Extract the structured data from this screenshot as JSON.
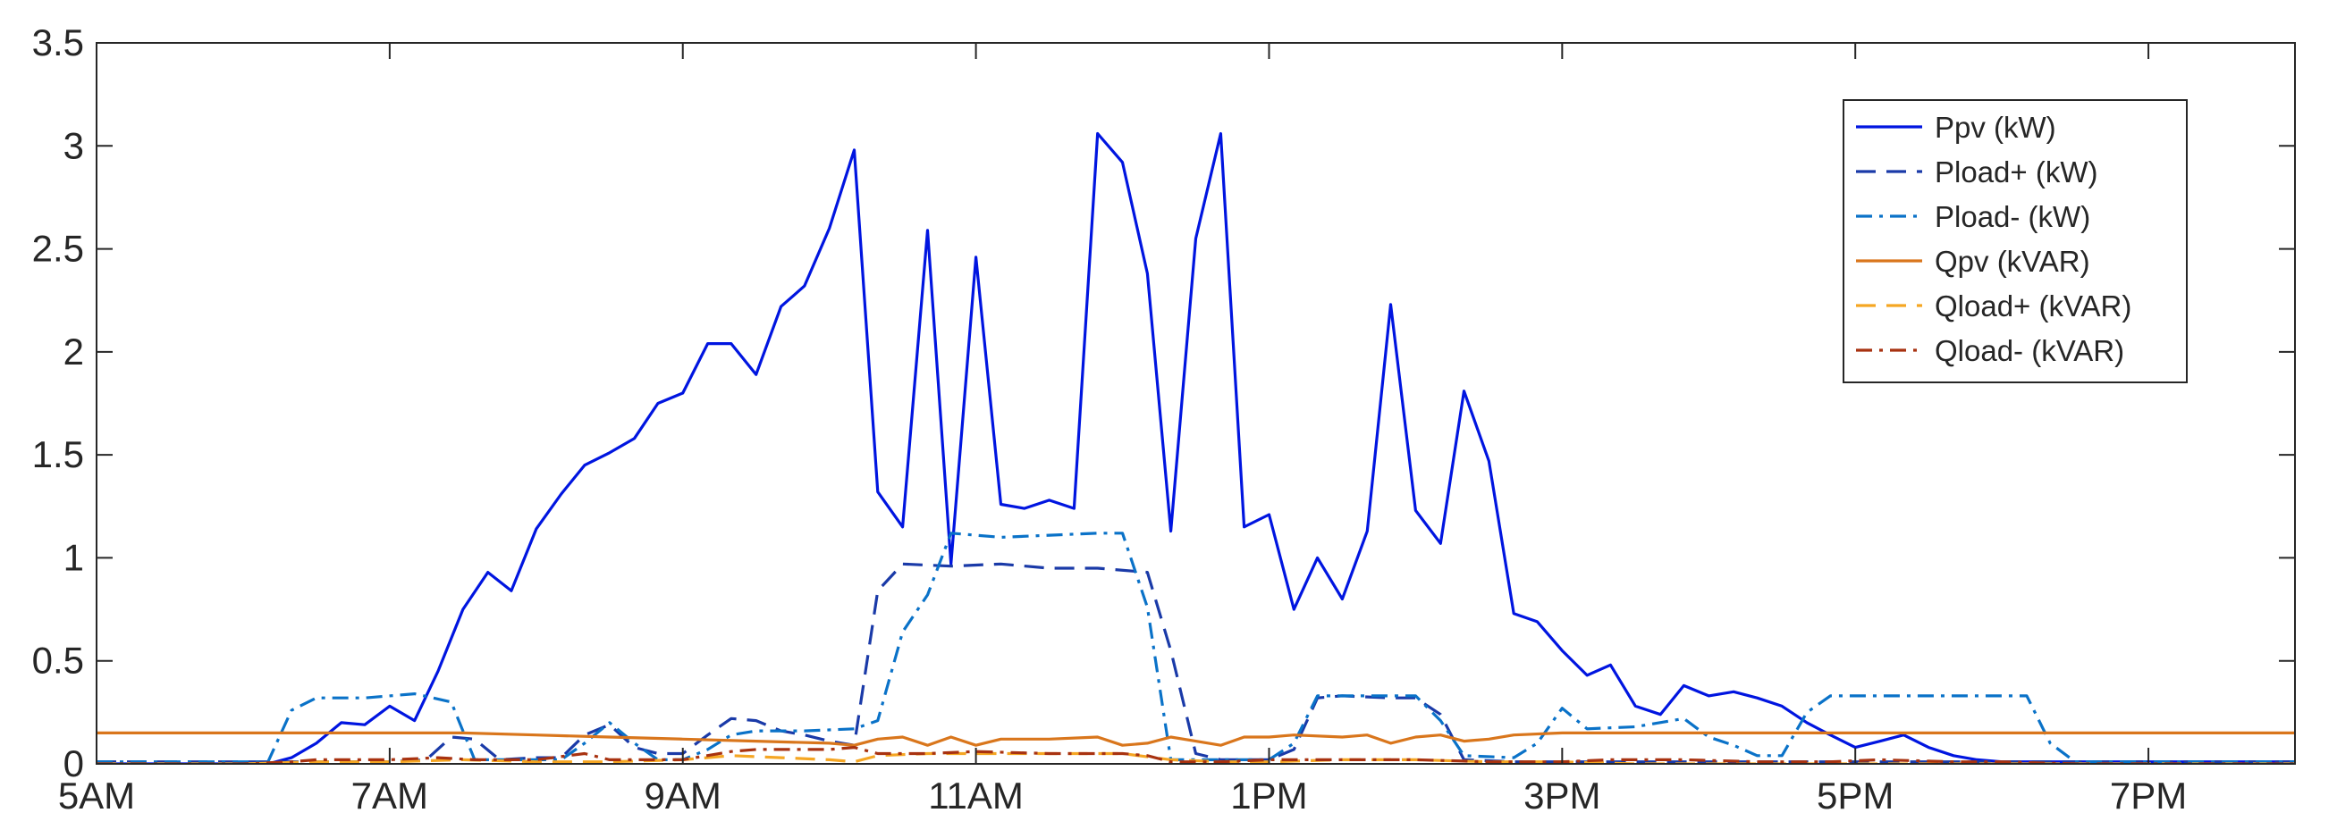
{
  "chart_data": {
    "type": "line",
    "title": "",
    "xlabel": "",
    "ylabel": "",
    "xlim": [
      5,
      20
    ],
    "ylim": [
      0,
      3.5
    ],
    "x_ticks": [
      {
        "value": 5,
        "label": "5AM"
      },
      {
        "value": 7,
        "label": "7AM"
      },
      {
        "value": 9,
        "label": "9AM"
      },
      {
        "value": 11,
        "label": "11AM"
      },
      {
        "value": 13,
        "label": "1PM"
      },
      {
        "value": 15,
        "label": "3PM"
      },
      {
        "value": 17,
        "label": "5PM"
      },
      {
        "value": 19,
        "label": "7PM"
      }
    ],
    "y_ticks": [
      {
        "value": 0,
        "label": "0"
      },
      {
        "value": 0.5,
        "label": "0.5"
      },
      {
        "value": 1,
        "label": "1"
      },
      {
        "value": 1.5,
        "label": "1.5"
      },
      {
        "value": 2,
        "label": "2"
      },
      {
        "value": 2.5,
        "label": "2.5"
      },
      {
        "value": 3,
        "label": "3"
      },
      {
        "value": 3.5,
        "label": "3.5"
      }
    ],
    "grid": false,
    "legend_position": "top-right",
    "series": [
      {
        "name": "Ppv (kW)",
        "color": "#0015e0",
        "dash": "solid",
        "points": [
          [
            5,
            0
          ],
          [
            6,
            0
          ],
          [
            6.17,
            0
          ],
          [
            6.33,
            0.03
          ],
          [
            6.5,
            0.1
          ],
          [
            6.67,
            0.2
          ],
          [
            6.83,
            0.19
          ],
          [
            7,
            0.28
          ],
          [
            7.17,
            0.21
          ],
          [
            7.33,
            0.45
          ],
          [
            7.5,
            0.75
          ],
          [
            7.67,
            0.93
          ],
          [
            7.83,
            0.84
          ],
          [
            8,
            1.14
          ],
          [
            8.17,
            1.31
          ],
          [
            8.33,
            1.45
          ],
          [
            8.5,
            1.51
          ],
          [
            8.67,
            1.58
          ],
          [
            8.83,
            1.75
          ],
          [
            9,
            1.8
          ],
          [
            9.17,
            2.04
          ],
          [
            9.33,
            2.04
          ],
          [
            9.5,
            1.89
          ],
          [
            9.67,
            2.22
          ],
          [
            9.83,
            2.32
          ],
          [
            10,
            2.6
          ],
          [
            10.17,
            2.98
          ],
          [
            10.33,
            1.32
          ],
          [
            10.5,
            1.15
          ],
          [
            10.67,
            2.59
          ],
          [
            10.83,
            0.97
          ],
          [
            11,
            2.46
          ],
          [
            11.17,
            1.26
          ],
          [
            11.33,
            1.24
          ],
          [
            11.5,
            1.28
          ],
          [
            11.67,
            1.24
          ],
          [
            11.83,
            3.06
          ],
          [
            12,
            2.92
          ],
          [
            12.17,
            2.38
          ],
          [
            12.33,
            1.13
          ],
          [
            12.5,
            2.55
          ],
          [
            12.67,
            3.06
          ],
          [
            12.83,
            1.15
          ],
          [
            13,
            1.21
          ],
          [
            13.17,
            0.75
          ],
          [
            13.33,
            1.0
          ],
          [
            13.5,
            0.8
          ],
          [
            13.67,
            1.13
          ],
          [
            13.83,
            2.23
          ],
          [
            14,
            1.23
          ],
          [
            14.17,
            1.07
          ],
          [
            14.33,
            1.81
          ],
          [
            14.5,
            1.47
          ],
          [
            14.67,
            0.73
          ],
          [
            14.83,
            0.69
          ],
          [
            15,
            0.55
          ],
          [
            15.17,
            0.43
          ],
          [
            15.33,
            0.48
          ],
          [
            15.5,
            0.28
          ],
          [
            15.67,
            0.24
          ],
          [
            15.83,
            0.38
          ],
          [
            16,
            0.33
          ],
          [
            16.17,
            0.35
          ],
          [
            16.33,
            0.32
          ],
          [
            16.5,
            0.28
          ],
          [
            16.67,
            0.2
          ],
          [
            16.83,
            0.14
          ],
          [
            17,
            0.08
          ],
          [
            17.17,
            0.11
          ],
          [
            17.33,
            0.14
          ],
          [
            17.5,
            0.08
          ],
          [
            17.67,
            0.04
          ],
          [
            17.83,
            0.02
          ],
          [
            18,
            0.01
          ],
          [
            18.5,
            0.01
          ],
          [
            19,
            0.01
          ],
          [
            20,
            0.01
          ]
        ]
      },
      {
        "name": "Pload+ (kW)",
        "color": "#1a3aa8",
        "dash": "dashed",
        "points": [
          [
            5,
            0.01
          ],
          [
            6,
            0.01
          ],
          [
            6.5,
            0.01
          ],
          [
            7,
            0.01
          ],
          [
            7.25,
            0.02
          ],
          [
            7.42,
            0.13
          ],
          [
            7.58,
            0.12
          ],
          [
            7.75,
            0.02
          ],
          [
            8,
            0.03
          ],
          [
            8.17,
            0.03
          ],
          [
            8.33,
            0.14
          ],
          [
            8.5,
            0.19
          ],
          [
            8.67,
            0.08
          ],
          [
            8.83,
            0.05
          ],
          [
            9,
            0.05
          ],
          [
            9.17,
            0.14
          ],
          [
            9.33,
            0.22
          ],
          [
            9.5,
            0.21
          ],
          [
            9.67,
            0.16
          ],
          [
            9.83,
            0.14
          ],
          [
            10,
            0.11
          ],
          [
            10.17,
            0.09
          ],
          [
            10.33,
            0.84
          ],
          [
            10.5,
            0.97
          ],
          [
            10.83,
            0.96
          ],
          [
            11.17,
            0.97
          ],
          [
            11.5,
            0.95
          ],
          [
            11.83,
            0.95
          ],
          [
            12.17,
            0.93
          ],
          [
            12.33,
            0.55
          ],
          [
            12.5,
            0.05
          ],
          [
            12.67,
            0.02
          ],
          [
            13,
            0.02
          ],
          [
            13.17,
            0.07
          ],
          [
            13.33,
            0.32
          ],
          [
            13.5,
            0.33
          ],
          [
            13.83,
            0.32
          ],
          [
            14,
            0.32
          ],
          [
            14.17,
            0.24
          ],
          [
            14.33,
            0.02
          ],
          [
            14.67,
            0.01
          ],
          [
            15,
            0.01
          ],
          [
            15.5,
            0.01
          ],
          [
            16,
            0.01
          ],
          [
            16.5,
            0.01
          ],
          [
            17,
            0.01
          ],
          [
            17.5,
            0.01
          ],
          [
            18,
            0.01
          ],
          [
            19,
            0.01
          ],
          [
            20,
            0.01
          ]
        ]
      },
      {
        "name": "Pload- (kW)",
        "color": "#0a72c8",
        "dash": "dashdot",
        "points": [
          [
            5,
            0.01
          ],
          [
            6,
            0.01
          ],
          [
            6.17,
            0.01
          ],
          [
            6.33,
            0.26
          ],
          [
            6.5,
            0.32
          ],
          [
            6.83,
            0.32
          ],
          [
            7.17,
            0.34
          ],
          [
            7.42,
            0.3
          ],
          [
            7.58,
            0.02
          ],
          [
            7.83,
            0.02
          ],
          [
            8.17,
            0.02
          ],
          [
            8.33,
            0.1
          ],
          [
            8.5,
            0.2
          ],
          [
            8.67,
            0.1
          ],
          [
            8.83,
            0.02
          ],
          [
            9,
            0.02
          ],
          [
            9.17,
            0.07
          ],
          [
            9.33,
            0.14
          ],
          [
            9.5,
            0.16
          ],
          [
            9.83,
            0.16
          ],
          [
            10.17,
            0.17
          ],
          [
            10.33,
            0.21
          ],
          [
            10.5,
            0.64
          ],
          [
            10.67,
            0.82
          ],
          [
            10.83,
            1.12
          ],
          [
            11,
            1.11
          ],
          [
            11.17,
            1.1
          ],
          [
            11.5,
            1.11
          ],
          [
            11.83,
            1.12
          ],
          [
            12,
            1.12
          ],
          [
            12.17,
            0.76
          ],
          [
            12.33,
            0.02
          ],
          [
            12.67,
            0.02
          ],
          [
            13,
            0.02
          ],
          [
            13.17,
            0.1
          ],
          [
            13.33,
            0.33
          ],
          [
            13.67,
            0.33
          ],
          [
            14,
            0.33
          ],
          [
            14.17,
            0.21
          ],
          [
            14.33,
            0.04
          ],
          [
            14.67,
            0.03
          ],
          [
            14.83,
            0.1
          ],
          [
            15,
            0.27
          ],
          [
            15.17,
            0.17
          ],
          [
            15.5,
            0.18
          ],
          [
            15.83,
            0.22
          ],
          [
            16,
            0.13
          ],
          [
            16.17,
            0.09
          ],
          [
            16.33,
            0.04
          ],
          [
            16.5,
            0.04
          ],
          [
            16.67,
            0.25
          ],
          [
            16.83,
            0.33
          ],
          [
            17,
            0.33
          ],
          [
            17.5,
            0.33
          ],
          [
            17.83,
            0.33
          ],
          [
            18.17,
            0.33
          ],
          [
            18.33,
            0.1
          ],
          [
            18.5,
            0.01
          ],
          [
            19,
            0.01
          ],
          [
            20,
            0.01
          ]
        ]
      },
      {
        "name": "Qpv (kVAR)",
        "color": "#d9761c",
        "dash": "solid",
        "points": [
          [
            5,
            0.15
          ],
          [
            6,
            0.15
          ],
          [
            6.5,
            0.15
          ],
          [
            7,
            0.15
          ],
          [
            7.5,
            0.15
          ],
          [
            8,
            0.14
          ],
          [
            8.5,
            0.13
          ],
          [
            9,
            0.12
          ],
          [
            9.5,
            0.11
          ],
          [
            10,
            0.1
          ],
          [
            10.17,
            0.09
          ],
          [
            10.33,
            0.12
          ],
          [
            10.5,
            0.13
          ],
          [
            10.67,
            0.09
          ],
          [
            10.83,
            0.13
          ],
          [
            11,
            0.09
          ],
          [
            11.17,
            0.12
          ],
          [
            11.5,
            0.12
          ],
          [
            11.83,
            0.13
          ],
          [
            12,
            0.09
          ],
          [
            12.17,
            0.1
          ],
          [
            12.33,
            0.13
          ],
          [
            12.5,
            0.11
          ],
          [
            12.67,
            0.09
          ],
          [
            12.83,
            0.13
          ],
          [
            13,
            0.13
          ],
          [
            13.17,
            0.14
          ],
          [
            13.5,
            0.13
          ],
          [
            13.67,
            0.14
          ],
          [
            13.83,
            0.1
          ],
          [
            14,
            0.13
          ],
          [
            14.17,
            0.14
          ],
          [
            14.33,
            0.11
          ],
          [
            14.5,
            0.12
          ],
          [
            14.67,
            0.14
          ],
          [
            15,
            0.15
          ],
          [
            15.5,
            0.15
          ],
          [
            16,
            0.15
          ],
          [
            16.5,
            0.15
          ],
          [
            17,
            0.15
          ],
          [
            17.5,
            0.15
          ],
          [
            18,
            0.15
          ],
          [
            18.5,
            0.15
          ],
          [
            19,
            0.15
          ],
          [
            19.5,
            0.15
          ],
          [
            20,
            0.15
          ]
        ]
      },
      {
        "name": "Qload+ (kVAR)",
        "color": "#f5a623",
        "dash": "dashed",
        "points": [
          [
            5,
            0
          ],
          [
            6,
            0
          ],
          [
            6.5,
            0.01
          ],
          [
            7,
            0.01
          ],
          [
            7.5,
            0.02
          ],
          [
            8,
            0.01
          ],
          [
            8.5,
            0.01
          ],
          [
            9,
            0.02
          ],
          [
            9.33,
            0.04
          ],
          [
            9.67,
            0.03
          ],
          [
            10,
            0.02
          ],
          [
            10.17,
            0.01
          ],
          [
            10.33,
            0.04
          ],
          [
            10.67,
            0.05
          ],
          [
            11,
            0.05
          ],
          [
            11.5,
            0.05
          ],
          [
            12,
            0.05
          ],
          [
            12.33,
            0.02
          ],
          [
            12.67,
            0.01
          ],
          [
            13,
            0.01
          ],
          [
            13.5,
            0.02
          ],
          [
            14,
            0.02
          ],
          [
            14.5,
            0.01
          ],
          [
            15,
            0.01
          ],
          [
            15.5,
            0
          ],
          [
            16,
            0
          ],
          [
            16.5,
            0
          ],
          [
            17,
            0
          ],
          [
            18,
            0
          ],
          [
            19,
            0
          ],
          [
            20,
            0
          ]
        ]
      },
      {
        "name": "Qload- (kVAR)",
        "color": "#a83210",
        "dash": "dashdot",
        "points": [
          [
            5,
            0
          ],
          [
            6,
            0
          ],
          [
            6.33,
            0.01
          ],
          [
            6.5,
            0.02
          ],
          [
            7,
            0.02
          ],
          [
            7.33,
            0.03
          ],
          [
            7.58,
            0.02
          ],
          [
            8,
            0.02
          ],
          [
            8.33,
            0.05
          ],
          [
            8.5,
            0.02
          ],
          [
            9,
            0.02
          ],
          [
            9.33,
            0.06
          ],
          [
            9.5,
            0.07
          ],
          [
            10,
            0.07
          ],
          [
            10.17,
            0.08
          ],
          [
            10.33,
            0.05
          ],
          [
            10.67,
            0.05
          ],
          [
            11,
            0.06
          ],
          [
            11.5,
            0.05
          ],
          [
            12,
            0.05
          ],
          [
            12.17,
            0.04
          ],
          [
            12.33,
            0.01
          ],
          [
            12.67,
            0.01
          ],
          [
            13,
            0.02
          ],
          [
            13.5,
            0.02
          ],
          [
            14,
            0.02
          ],
          [
            14.5,
            0.01
          ],
          [
            15,
            0.01
          ],
          [
            15.33,
            0.02
          ],
          [
            15.83,
            0.02
          ],
          [
            16.33,
            0.01
          ],
          [
            16.83,
            0.01
          ],
          [
            17.17,
            0.02
          ],
          [
            17.67,
            0.01
          ],
          [
            18,
            0.01
          ],
          [
            18.5,
            0
          ],
          [
            19,
            0
          ],
          [
            20,
            0
          ]
        ]
      }
    ]
  }
}
